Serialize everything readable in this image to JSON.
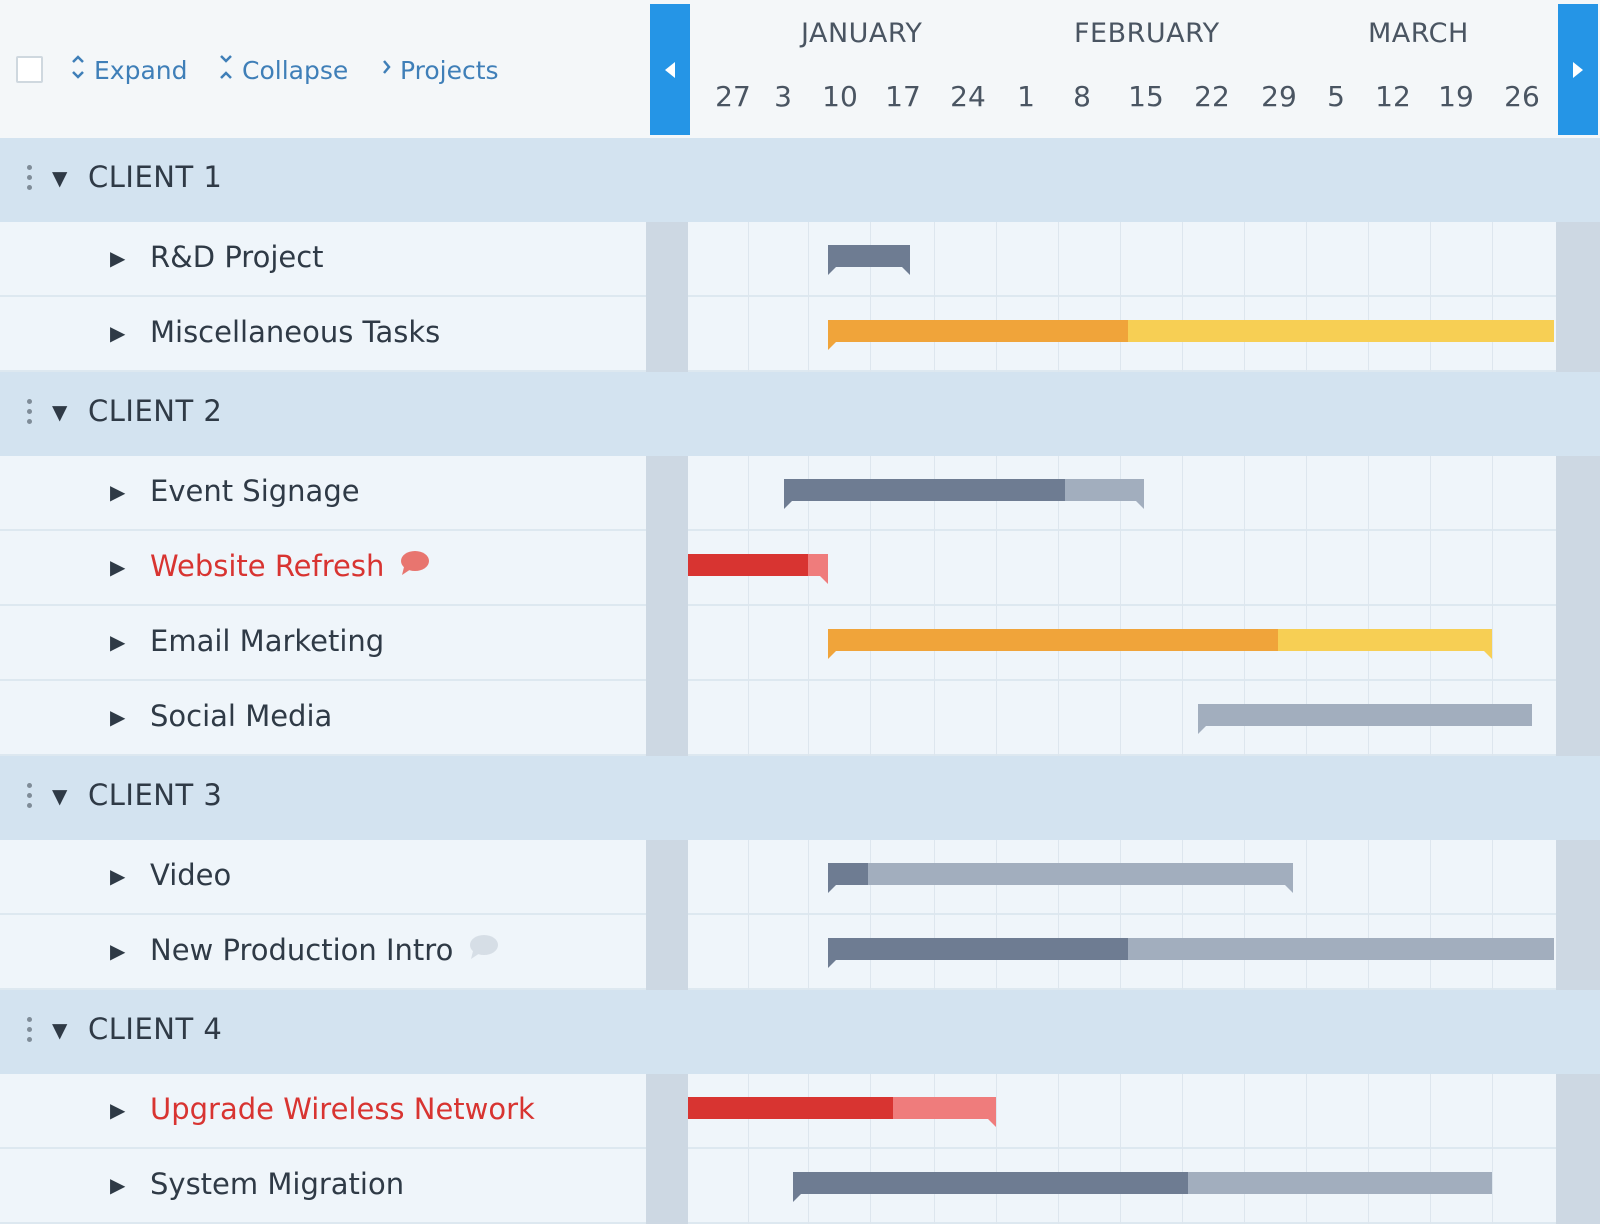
{
  "toolbar": {
    "expand_label": "Expand",
    "collapse_label": "Collapse",
    "projects_label": "Projects"
  },
  "timeline": {
    "months": [
      "JANUARY",
      "FEBRUARY",
      "MARCH"
    ],
    "days": [
      "27",
      "3",
      "10",
      "17",
      "24",
      "1",
      "8",
      "15",
      "22",
      "29",
      "5",
      "12",
      "19",
      "26"
    ]
  },
  "colors": {
    "accent": "#2595e6",
    "group_bg": "#d3e3f0",
    "red": "#d83431",
    "orange": "#f0a43a",
    "yellow": "#f7cf54",
    "slate": "#6e7c92",
    "gray": "#a2aebe"
  },
  "groups": [
    {
      "label": "CLIENT 1",
      "projects": [
        {
          "label": "R&D Project",
          "state": "normal",
          "comment": "none"
        },
        {
          "label": "Miscellaneous Tasks",
          "state": "normal",
          "comment": "none"
        }
      ]
    },
    {
      "label": "CLIENT 2",
      "projects": [
        {
          "label": "Event Signage",
          "state": "normal",
          "comment": "none"
        },
        {
          "label": "Website Refresh",
          "state": "alert",
          "comment": "red"
        },
        {
          "label": "Email Marketing",
          "state": "normal",
          "comment": "none"
        },
        {
          "label": "Social Media",
          "state": "normal",
          "comment": "none"
        }
      ]
    },
    {
      "label": "CLIENT 3",
      "projects": [
        {
          "label": "Video",
          "state": "normal",
          "comment": "none"
        },
        {
          "label": "New Production Intro",
          "state": "normal",
          "comment": "gray"
        }
      ]
    },
    {
      "label": "CLIENT 4",
      "projects": [
        {
          "label": "Upgrade Wireless Network",
          "state": "alert",
          "comment": "none"
        },
        {
          "label": "System Migration",
          "state": "normal",
          "comment": "none"
        }
      ]
    }
  ]
}
